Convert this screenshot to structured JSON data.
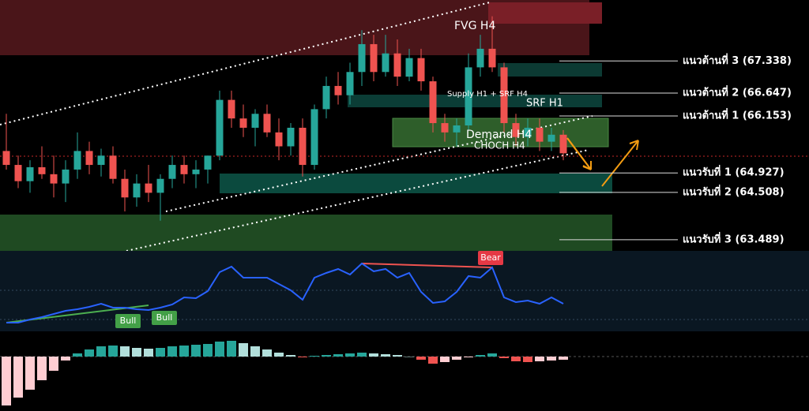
{
  "chart_data": {
    "type": "candlestick",
    "ylim": [
      63.25,
      68.65
    ],
    "up_color": "#26a69a",
    "down_color": "#ef5350",
    "open": [
      65.4,
      65.1,
      64.75,
      65.05,
      64.9,
      64.7,
      65.0,
      65.4,
      65.1,
      65.3,
      64.8,
      64.4,
      64.7,
      64.5,
      64.8,
      65.1,
      64.9,
      65.0,
      65.3,
      66.5,
      66.1,
      65.9,
      66.2,
      65.8,
      65.5,
      65.9,
      65.1,
      66.3,
      66.8,
      66.6,
      67.1,
      67.7,
      67.1,
      67.5,
      67.0,
      67.4,
      66.9,
      66.0,
      65.8,
      65.95,
      67.2,
      67.6,
      67.2,
      66.0,
      65.7,
      65.9,
      65.6,
      65.75
    ],
    "high": [
      66.2,
      65.3,
      65.2,
      65.5,
      65.3,
      65.2,
      65.8,
      65.6,
      65.45,
      65.5,
      65.0,
      64.9,
      65.1,
      64.9,
      65.3,
      65.3,
      65.2,
      65.3,
      66.7,
      66.7,
      66.4,
      66.3,
      66.4,
      66.1,
      66.0,
      66.1,
      66.4,
      67.0,
      67.1,
      67.3,
      68.0,
      67.9,
      67.9,
      67.8,
      67.6,
      67.6,
      67.0,
      66.2,
      66.1,
      67.5,
      67.9,
      68.3,
      67.3,
      66.2,
      66.1,
      66.1,
      65.9,
      65.85
    ],
    "low": [
      65.0,
      64.6,
      64.5,
      64.8,
      64.4,
      64.3,
      64.8,
      64.9,
      64.85,
      64.7,
      64.1,
      64.2,
      64.3,
      63.9,
      64.6,
      64.7,
      64.6,
      64.7,
      65.2,
      65.9,
      65.7,
      65.5,
      65.7,
      65.2,
      65.3,
      64.85,
      65.0,
      66.1,
      66.4,
      66.4,
      66.8,
      66.9,
      67.0,
      66.8,
      66.9,
      66.7,
      65.8,
      65.6,
      65.5,
      65.85,
      67.0,
      67.1,
      65.8,
      65.5,
      65.5,
      65.4,
      65.4,
      65.2
    ],
    "close": [
      65.1,
      64.75,
      65.05,
      64.9,
      64.7,
      65.0,
      65.4,
      65.1,
      65.3,
      64.8,
      64.4,
      64.7,
      64.5,
      64.8,
      65.1,
      64.9,
      65.0,
      65.3,
      66.5,
      66.1,
      65.9,
      66.2,
      65.8,
      65.5,
      65.9,
      65.1,
      66.3,
      66.8,
      66.6,
      67.1,
      67.7,
      67.1,
      67.5,
      67.0,
      67.4,
      66.9,
      66.0,
      65.8,
      65.95,
      67.2,
      67.6,
      67.2,
      66.0,
      65.7,
      65.9,
      65.6,
      65.75,
      65.35
    ],
    "levels": [
      {
        "label": "แนวต้านที่ 3 (67.338)",
        "value": 67.338
      },
      {
        "label": "แนวต้านที่ 2 (66.647)",
        "value": 66.647
      },
      {
        "label": "แนวต้านที่ 1 (66.153)",
        "value": 66.153
      },
      {
        "label": "แนวรับที่ 1 (64.927)",
        "value": 64.927
      },
      {
        "label": "แนวรับที่ 2 (64.508)",
        "value": 64.508
      },
      {
        "label": "แนวรับที่ 3 (63.489)",
        "value": 63.489
      }
    ],
    "zone_labels": [
      "FVG H4",
      "Supply H1 + SRF H4",
      "SRF H1",
      "Demand H4",
      "CHOCH H4"
    ],
    "rsi": {
      "color": "#2962ff",
      "ylim": [
        20,
        80
      ],
      "values": [
        26.6,
        26.6,
        29.0,
        30.8,
        33.2,
        35.6,
        36.8,
        38.6,
        41.0,
        38.0,
        38.0,
        36.8,
        36.2,
        38.0,
        40.4,
        45.8,
        45.2,
        50.6,
        65.0,
        69.2,
        60.8,
        60.8,
        60.8,
        56.0,
        51.2,
        44.0,
        60.8,
        64.4,
        67.4,
        63.2,
        71.6,
        65.6,
        67.4,
        60.8,
        64.4,
        50.0,
        41.6,
        42.8,
        50.0,
        62.0,
        60.8,
        68.6,
        45.8,
        42.2,
        43.4,
        41.0,
        45.8,
        41.0
      ],
      "bear_label": "Bear",
      "bull_labels": [
        "Bull",
        "Bull"
      ]
    },
    "histogram": {
      "ylim": [
        -0.7,
        0.3
      ],
      "colors": [
        "#26a69a",
        "#b2dfdb",
        "#ef5350",
        "#ffcdd2"
      ],
      "values": [
        -0.62,
        -0.52,
        -0.42,
        -0.3,
        -0.18,
        -0.05,
        0.04,
        0.09,
        0.13,
        0.14,
        0.13,
        0.11,
        0.1,
        0.11,
        0.13,
        0.14,
        0.15,
        0.16,
        0.19,
        0.2,
        0.17,
        0.13,
        0.09,
        0.05,
        0.02,
        -0.01,
        0.01,
        0.02,
        0.03,
        0.04,
        0.05,
        0.04,
        0.03,
        0.02,
        0.0,
        -0.04,
        -0.09,
        -0.07,
        -0.04,
        -0.01,
        0.02,
        0.04,
        -0.02,
        -0.06,
        -0.07,
        -0.06,
        -0.05,
        -0.04
      ]
    }
  }
}
